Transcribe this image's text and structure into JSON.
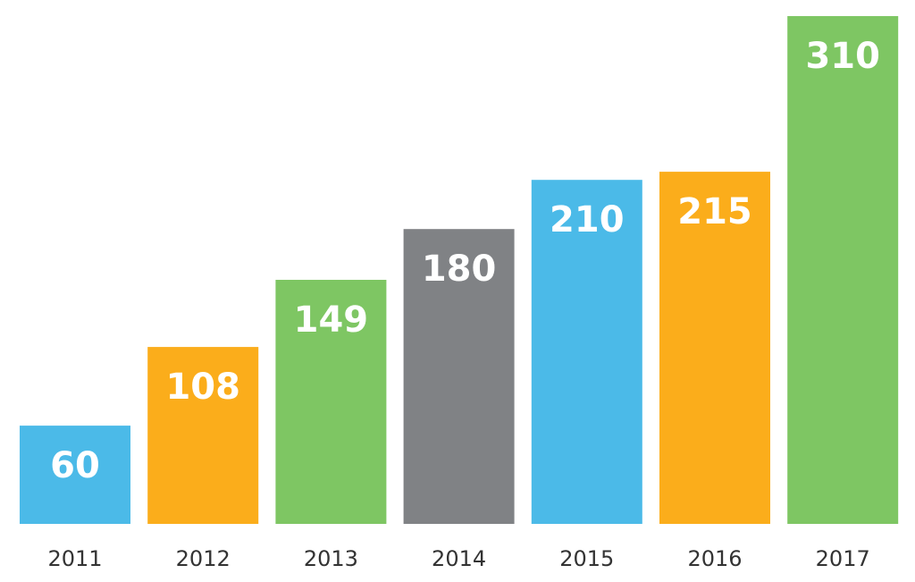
{
  "chart_data": {
    "type": "bar",
    "categories": [
      "2011",
      "2012",
      "2013",
      "2014",
      "2015",
      "2016",
      "2017"
    ],
    "values": [
      60,
      108,
      149,
      180,
      210,
      215,
      310
    ],
    "value_labels": [
      "60",
      "108",
      "149",
      "180",
      "210",
      "215",
      "310"
    ],
    "bar_colors": [
      "#4BBAE8",
      "#FBAD1B",
      "#7EC663",
      "#808285",
      "#4BBAE8",
      "#FBAD1B",
      "#7EC663"
    ],
    "title": "",
    "xlabel": "",
    "ylabel": "",
    "ylim": [
      0,
      310
    ],
    "grid": false,
    "legend": "none",
    "show_y_axis": false,
    "data_labels": "inside-top"
  }
}
